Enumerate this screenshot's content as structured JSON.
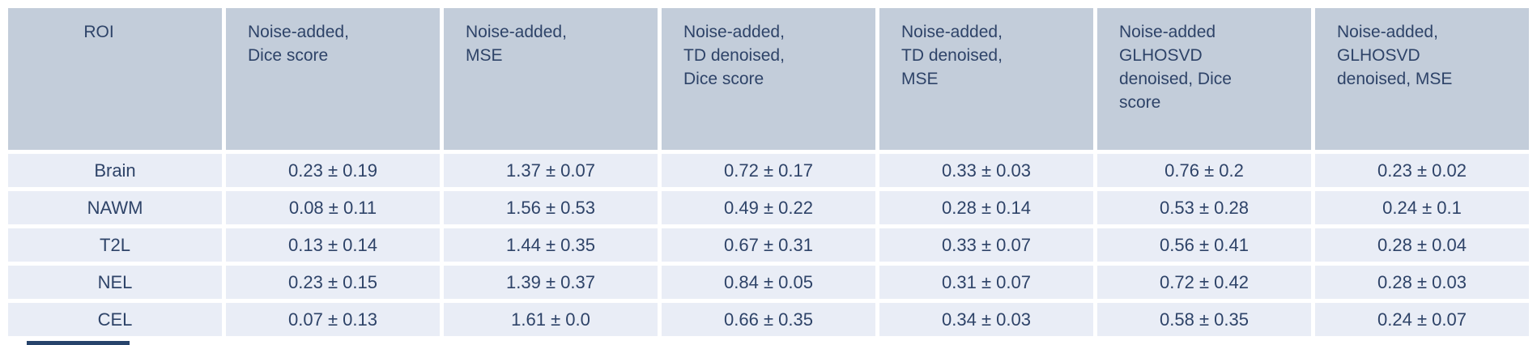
{
  "colors": {
    "page_background": "#ffffff",
    "header_background": "#c3cdda",
    "row_background": "#e9edf6",
    "text": "#2e4368",
    "cropped_fragment": "#27436b"
  },
  "table": {
    "headers": [
      "ROI",
      "Noise-added,\nDice score",
      "Noise-added,\nMSE",
      "Noise-added,\nTD denoised,\nDice score",
      "Noise-added,\nTD denoised,\nMSE",
      "Noise-added\nGLHOSVD\ndenoised, Dice\nscore",
      "Noise-added,\nGLHOSVD\ndenoised, MSE"
    ],
    "rows": [
      {
        "roi": "Brain",
        "values": [
          "0.23 ± 0.19",
          "1.37 ± 0.07",
          "0.72 ± 0.17",
          "0.33 ± 0.03",
          "0.76 ± 0.2",
          "0.23 ± 0.02"
        ]
      },
      {
        "roi": "NAWM",
        "values": [
          "0.08 ± 0.11",
          "1.56 ± 0.53",
          "0.49 ± 0.22",
          "0.28 ± 0.14",
          "0.53 ± 0.28",
          "0.24 ± 0.1"
        ]
      },
      {
        "roi": "T2L",
        "values": [
          "0.13 ± 0.14",
          "1.44 ± 0.35",
          "0.67 ± 0.31",
          "0.33 ± 0.07",
          "0.56 ± 0.41",
          "0.28 ± 0.04"
        ]
      },
      {
        "roi": "NEL",
        "values": [
          "0.23 ± 0.15",
          "1.39 ± 0.37",
          "0.84 ± 0.05",
          "0.31 ± 0.07",
          "0.72 ± 0.42",
          "0.28 ± 0.03"
        ]
      },
      {
        "roi": "CEL",
        "values": [
          "0.07 ± 0.13",
          "1.61 ± 0.0",
          "0.66 ± 0.35",
          "0.34 ± 0.03",
          "0.58 ± 0.35",
          "0.24 ± 0.07"
        ]
      }
    ]
  },
  "chart_data": {
    "type": "table",
    "title": "",
    "columns": [
      "ROI",
      "Noise-added, Dice score",
      "Noise-added, MSE",
      "Noise-added, TD denoised, Dice score",
      "Noise-added, TD denoised, MSE",
      "Noise-added GLHOSVD denoised, Dice score",
      "Noise-added, GLHOSVD denoised, MSE"
    ],
    "rows": [
      [
        "Brain",
        "0.23 ± 0.19",
        "1.37 ± 0.07",
        "0.72 ± 0.17",
        "0.33 ± 0.03",
        "0.76 ± 0.2",
        "0.23 ± 0.02"
      ],
      [
        "NAWM",
        "0.08 ± 0.11",
        "1.56 ± 0.53",
        "0.49 ± 0.22",
        "0.28 ± 0.14",
        "0.53 ± 0.28",
        "0.24 ± 0.1"
      ],
      [
        "T2L",
        "0.13 ± 0.14",
        "1.44 ± 0.35",
        "0.67 ± 0.31",
        "0.33 ± 0.07",
        "0.56 ± 0.41",
        "0.28 ± 0.04"
      ],
      [
        "NEL",
        "0.23 ± 0.15",
        "1.39 ± 0.37",
        "0.84 ± 0.05",
        "0.31 ± 0.07",
        "0.72 ± 0.42",
        "0.28 ± 0.03"
      ],
      [
        "CEL",
        "0.07 ± 0.13",
        "1.61 ± 0.0",
        "0.66 ± 0.35",
        "0.34 ± 0.03",
        "0.58 ± 0.35",
        "0.24 ± 0.07"
      ]
    ]
  }
}
